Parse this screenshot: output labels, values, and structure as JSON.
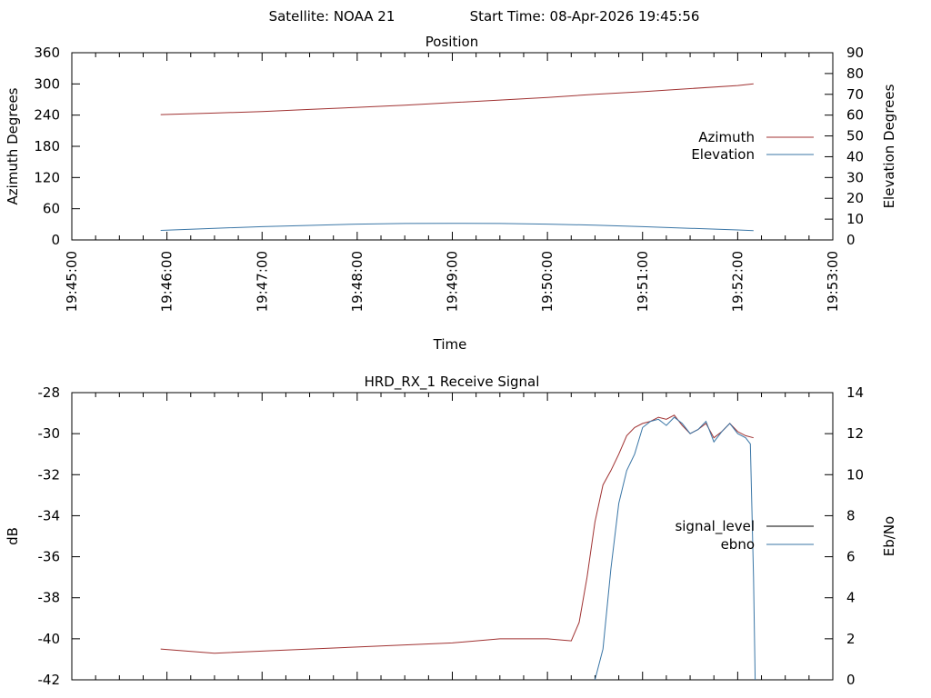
{
  "header": {
    "satellite_label": "Satellite: NOAA 21",
    "start_time_label": "Start Time: 08-Apr-2026 19:45:56"
  },
  "colors": {
    "azimuth": "#a03232",
    "elevation": "#3a76a6",
    "signal_level": "#000000",
    "ebno_upper": "#1aa01a",
    "ebno": "#3a76a6",
    "signal_trace": "#a03232"
  },
  "chart_data": [
    {
      "type": "line",
      "title": "Position",
      "xlabel": "Time",
      "ylabel": "Azimuth Degrees",
      "y2label": "Elevation Degrees",
      "xlim": [
        "19:45:00",
        "19:53:00"
      ],
      "ylim": [
        0,
        360
      ],
      "y2lim": [
        0,
        90
      ],
      "x_ticks": [
        "19:45:00",
        "19:46:00",
        "19:47:00",
        "19:48:00",
        "19:49:00",
        "19:50:00",
        "19:51:00",
        "19:52:00",
        "19:53:00"
      ],
      "y_ticks": [
        "0",
        "60",
        "120",
        "180",
        "240",
        "300",
        "360"
      ],
      "y2_ticks": [
        "0",
        "10",
        "20",
        "30",
        "40",
        "50",
        "60",
        "70",
        "80",
        "90"
      ],
      "legend_position": "right",
      "grid": false,
      "series": [
        {
          "name": "Azimuth",
          "axis": "left",
          "x": [
            "19:45:56",
            "19:46:30",
            "19:47:00",
            "19:47:30",
            "19:48:00",
            "19:48:30",
            "19:49:00",
            "19:49:30",
            "19:50:00",
            "19:50:30",
            "19:51:00",
            "19:51:30",
            "19:52:00",
            "19:52:10"
          ],
          "y": [
            241,
            244,
            247,
            251,
            255,
            259,
            264,
            269,
            274,
            280,
            285,
            291,
            297,
            300
          ]
        },
        {
          "name": "Elevation",
          "axis": "right",
          "x": [
            "19:45:56",
            "19:46:30",
            "19:47:00",
            "19:47:30",
            "19:48:00",
            "19:48:30",
            "19:49:00",
            "19:49:30",
            "19:50:00",
            "19:50:30",
            "19:51:00",
            "19:51:30",
            "19:52:00",
            "19:52:10"
          ],
          "y": [
            4.6,
            5.6,
            6.4,
            7.0,
            7.6,
            7.9,
            8.0,
            7.9,
            7.6,
            7.1,
            6.4,
            5.6,
            4.8,
            4.5
          ]
        }
      ]
    },
    {
      "type": "line",
      "title": "HRD_RX_1 Receive Signal",
      "ylabel": "dB",
      "y2label": "Eb/No",
      "xlim": [
        "19:45:00",
        "19:53:00"
      ],
      "ylim": [
        -42,
        -28
      ],
      "y2lim": [
        0,
        14
      ],
      "y_ticks": [
        "-42",
        "-40",
        "-38",
        "-36",
        "-34",
        "-32",
        "-30",
        "-28"
      ],
      "y2_ticks": [
        "0",
        "2",
        "4",
        "6",
        "8",
        "10",
        "12",
        "14"
      ],
      "legend_position": "right",
      "grid": false,
      "series": [
        {
          "name": "signal_level",
          "axis": "left",
          "x": [
            "19:45:56",
            "19:46:30",
            "19:47:00",
            "19:47:30",
            "19:48:00",
            "19:48:30",
            "19:49:00",
            "19:49:30",
            "19:50:00",
            "19:50:15",
            "19:50:20",
            "19:50:25",
            "19:50:30",
            "19:50:35",
            "19:50:40",
            "19:50:45",
            "19:50:50",
            "19:50:55",
            "19:51:00",
            "19:51:05",
            "19:51:10",
            "19:51:15",
            "19:51:20",
            "19:51:25",
            "19:51:30",
            "19:51:35",
            "19:51:40",
            "19:51:45",
            "19:51:50",
            "19:51:55",
            "19:52:00",
            "19:52:05",
            "19:52:10"
          ],
          "y": [
            -40.5,
            -40.7,
            -40.6,
            -40.5,
            -40.4,
            -40.3,
            -40.2,
            -40.0,
            -40.0,
            -40.1,
            -39.2,
            -37.0,
            -34.3,
            -32.5,
            -31.8,
            -31.0,
            -30.1,
            -29.7,
            -29.5,
            -29.4,
            -29.2,
            -29.3,
            -29.1,
            -29.6,
            -30.0,
            -29.8,
            -29.5,
            -30.2,
            -29.9,
            -29.5,
            -29.9,
            -30.1,
            -30.2
          ]
        },
        {
          "name": "ebno",
          "axis": "right",
          "x": [
            "19:50:30",
            "19:50:35",
            "19:50:40",
            "19:50:45",
            "19:50:50",
            "19:50:55",
            "19:51:00",
            "19:51:05",
            "19:51:10",
            "19:51:15",
            "19:51:20",
            "19:51:25",
            "19:51:30",
            "19:51:35",
            "19:51:40",
            "19:51:45",
            "19:51:50",
            "19:51:55",
            "19:52:00",
            "19:52:05",
            "19:52:08",
            "19:52:10",
            "19:52:11"
          ],
          "y": [
            0.0,
            1.5,
            5.4,
            8.6,
            10.2,
            11.0,
            12.3,
            12.6,
            12.7,
            12.4,
            12.8,
            12.5,
            12.0,
            12.2,
            12.6,
            11.6,
            12.1,
            12.5,
            12.0,
            11.8,
            11.5,
            5.0,
            0.0
          ]
        }
      ]
    }
  ]
}
